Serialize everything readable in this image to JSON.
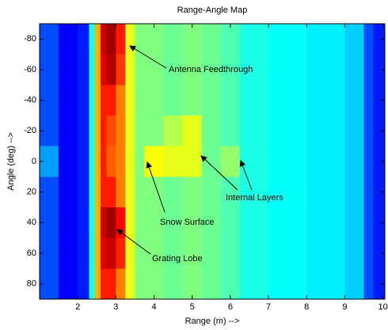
{
  "chart_data": {
    "type": "heatmap",
    "title": "Range-Angle Map",
    "x_label": "Range (m) -->",
    "y_label": "Angle (deg) -->",
    "colormap": "jet",
    "x_edges": [
      1,
      1.5,
      2,
      2.3,
      2.45,
      2.6,
      2.75,
      3.0,
      3.25,
      3.5,
      3.75,
      4.25,
      4.75,
      5.25,
      5.75,
      6.25,
      7,
      8,
      9,
      9.5,
      9.75,
      10.05
    ],
    "y_edges": [
      -90,
      -70,
      -50,
      -30,
      -10,
      10,
      30,
      50,
      70,
      90
    ],
    "values": [
      [
        0.2,
        0.12,
        0.15,
        0.4,
        0.7,
        0.92,
        0.97,
        0.85,
        0.6,
        0.5,
        0.5,
        0.48,
        0.5,
        0.48,
        0.45,
        0.4,
        0.38,
        0.36,
        0.33,
        0.2,
        0.15
      ],
      [
        0.2,
        0.12,
        0.15,
        0.4,
        0.7,
        0.9,
        0.95,
        0.82,
        0.6,
        0.5,
        0.5,
        0.48,
        0.5,
        0.48,
        0.45,
        0.4,
        0.38,
        0.36,
        0.33,
        0.2,
        0.15
      ],
      [
        0.2,
        0.12,
        0.15,
        0.4,
        0.7,
        0.85,
        0.85,
        0.75,
        0.6,
        0.5,
        0.5,
        0.48,
        0.5,
        0.48,
        0.45,
        0.4,
        0.38,
        0.36,
        0.33,
        0.2,
        0.15
      ],
      [
        0.2,
        0.12,
        0.15,
        0.4,
        0.7,
        0.85,
        0.8,
        0.75,
        0.6,
        0.5,
        0.5,
        0.55,
        0.6,
        0.48,
        0.45,
        0.4,
        0.38,
        0.36,
        0.33,
        0.2,
        0.15
      ],
      [
        0.28,
        0.12,
        0.15,
        0.4,
        0.7,
        0.85,
        0.78,
        0.75,
        0.6,
        0.5,
        0.62,
        0.6,
        0.6,
        0.48,
        0.52,
        0.4,
        0.38,
        0.36,
        0.33,
        0.2,
        0.15
      ],
      [
        0.2,
        0.12,
        0.15,
        0.4,
        0.7,
        0.85,
        0.85,
        0.75,
        0.6,
        0.5,
        0.5,
        0.48,
        0.5,
        0.48,
        0.45,
        0.4,
        0.38,
        0.36,
        0.33,
        0.2,
        0.15
      ],
      [
        0.2,
        0.12,
        0.15,
        0.4,
        0.7,
        0.92,
        0.97,
        0.87,
        0.6,
        0.5,
        0.5,
        0.48,
        0.5,
        0.48,
        0.45,
        0.4,
        0.38,
        0.36,
        0.33,
        0.2,
        0.15
      ],
      [
        0.2,
        0.12,
        0.15,
        0.4,
        0.7,
        0.9,
        0.93,
        0.84,
        0.6,
        0.5,
        0.5,
        0.48,
        0.5,
        0.48,
        0.45,
        0.4,
        0.38,
        0.36,
        0.33,
        0.2,
        0.15
      ],
      [
        0.2,
        0.12,
        0.15,
        0.4,
        0.7,
        0.85,
        0.85,
        0.75,
        0.6,
        0.5,
        0.5,
        0.48,
        0.5,
        0.48,
        0.45,
        0.4,
        0.38,
        0.36,
        0.33,
        0.2,
        0.15
      ]
    ],
    "xlim": [
      1,
      10.05
    ],
    "xticks": [
      2,
      3,
      4,
      5,
      6,
      7,
      8,
      9,
      10
    ],
    "ylim": [
      -90,
      90
    ],
    "yticks": [
      -80,
      -60,
      -40,
      -20,
      0,
      20,
      40,
      60,
      80
    ],
    "y_reversed": true,
    "annotations": [
      "Antenna Feedthrough",
      "Snow Surface",
      "Internal Layers",
      "Grating Lobe"
    ]
  }
}
